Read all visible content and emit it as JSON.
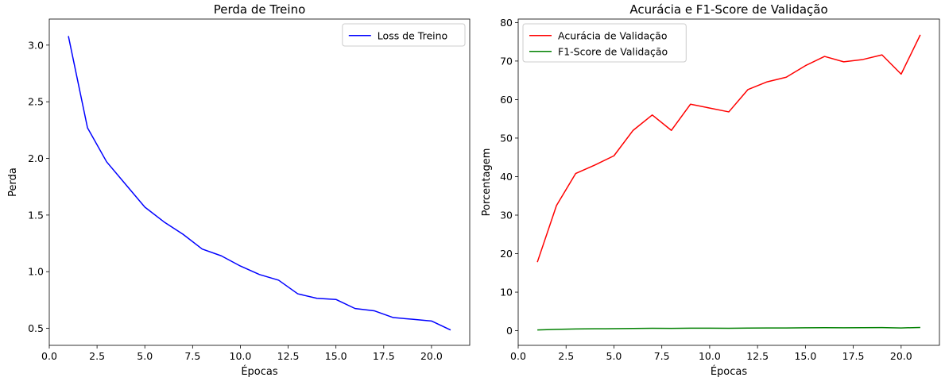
{
  "chart_data": [
    {
      "type": "line",
      "title": "Perda de Treino",
      "xlabel": "Épocas",
      "ylabel": "Perda",
      "xlim": [
        0,
        22.0
      ],
      "ylim": [
        0.35,
        3.23
      ],
      "xticks": [
        0.0,
        2.5,
        5.0,
        7.5,
        10.0,
        12.5,
        15.0,
        17.5,
        20.0
      ],
      "yticks": [
        0.5,
        1.0,
        1.5,
        2.0,
        2.5,
        3.0
      ],
      "grid": false,
      "legend_position": "top-right",
      "series": [
        {
          "name": "Loss de Treino",
          "color": "#0000ff",
          "x": [
            1,
            2,
            3,
            4,
            5,
            6,
            7,
            8,
            9,
            10,
            11,
            12,
            13,
            14,
            15,
            16,
            17,
            18,
            19,
            20,
            21
          ],
          "y": [
            3.08,
            2.27,
            1.97,
            1.77,
            1.57,
            1.44,
            1.33,
            1.2,
            1.14,
            1.05,
            0.975,
            0.925,
            0.805,
            0.765,
            0.755,
            0.675,
            0.655,
            0.595,
            0.58,
            0.565,
            0.485
          ]
        }
      ]
    },
    {
      "type": "line",
      "title": "Acurácia e F1-Score de Validação",
      "xlabel": "Épocas",
      "ylabel": "Porcentagem",
      "xlim": [
        0,
        22.0
      ],
      "ylim": [
        -3.8,
        80.9
      ],
      "xticks": [
        0.0,
        2.5,
        5.0,
        7.5,
        10.0,
        12.5,
        15.0,
        17.5,
        20.0
      ],
      "yticks": [
        0,
        10,
        20,
        30,
        40,
        50,
        60,
        70,
        80
      ],
      "grid": false,
      "legend_position": "top-left",
      "series": [
        {
          "name": "Acurácia de Validação",
          "color": "#ff0000",
          "x": [
            1,
            2,
            3,
            4,
            5,
            6,
            7,
            8,
            9,
            10,
            11,
            12,
            13,
            14,
            15,
            16,
            17,
            18,
            19,
            20,
            21
          ],
          "y": [
            17.8,
            32.5,
            40.8,
            43.0,
            45.4,
            52.0,
            56.0,
            52.0,
            58.8,
            57.8,
            56.8,
            62.6,
            64.6,
            65.8,
            68.8,
            71.2,
            69.8,
            70.4,
            71.6,
            66.6,
            76.8
          ]
        },
        {
          "name": "F1-Score de Validação",
          "color": "#008000",
          "x": [
            1,
            2,
            3,
            4,
            5,
            6,
            7,
            8,
            9,
            10,
            11,
            12,
            13,
            14,
            15,
            16,
            17,
            18,
            19,
            20,
            21
          ],
          "y": [
            0.2,
            0.35,
            0.45,
            0.5,
            0.52,
            0.58,
            0.62,
            0.6,
            0.65,
            0.65,
            0.63,
            0.68,
            0.7,
            0.72,
            0.75,
            0.78,
            0.76,
            0.78,
            0.8,
            0.72,
            0.85
          ]
        }
      ]
    }
  ]
}
